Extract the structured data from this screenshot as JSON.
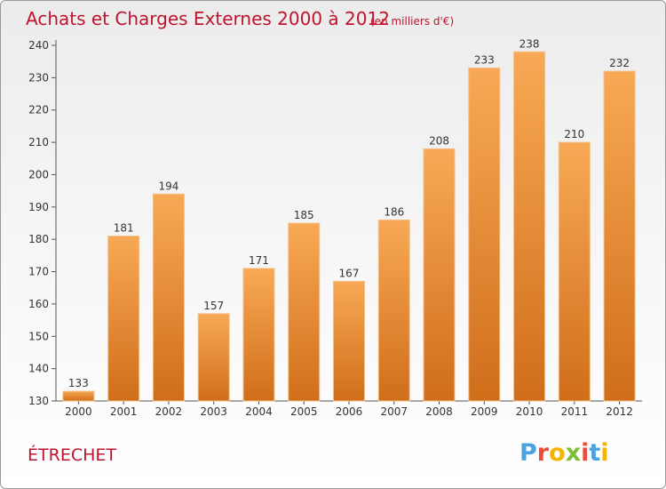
{
  "chart_data": {
    "type": "bar",
    "title": "Achats et Charges Externes 2000 à 2012",
    "subtitle": "(en milliers d'€)",
    "categories": [
      "2000",
      "2001",
      "2002",
      "2003",
      "2004",
      "2005",
      "2006",
      "2007",
      "2008",
      "2009",
      "2010",
      "2011",
      "2012"
    ],
    "values": [
      133,
      181,
      194,
      157,
      171,
      185,
      167,
      186,
      208,
      233,
      238,
      210,
      232
    ],
    "ylim": [
      130,
      240
    ],
    "yticks": [
      130,
      140,
      150,
      160,
      170,
      180,
      190,
      200,
      210,
      220,
      230,
      240
    ],
    "grid": false,
    "bar_color_top": "#f8a955",
    "bar_color_bottom": "#d06e1a"
  },
  "commune": "ÉTRECHET",
  "logo": {
    "text": "Proxiti",
    "letters": [
      {
        "ch": "P",
        "color": "#4aa3df"
      },
      {
        "ch": "r",
        "color": "#e94e3c"
      },
      {
        "ch": "o",
        "color": "#f4b400"
      },
      {
        "ch": "x",
        "color": "#7cbf3a"
      },
      {
        "ch": "i",
        "color": "#e94e3c"
      },
      {
        "ch": "t",
        "color": "#4aa3df"
      },
      {
        "ch": "i",
        "color": "#f4b400"
      }
    ]
  }
}
